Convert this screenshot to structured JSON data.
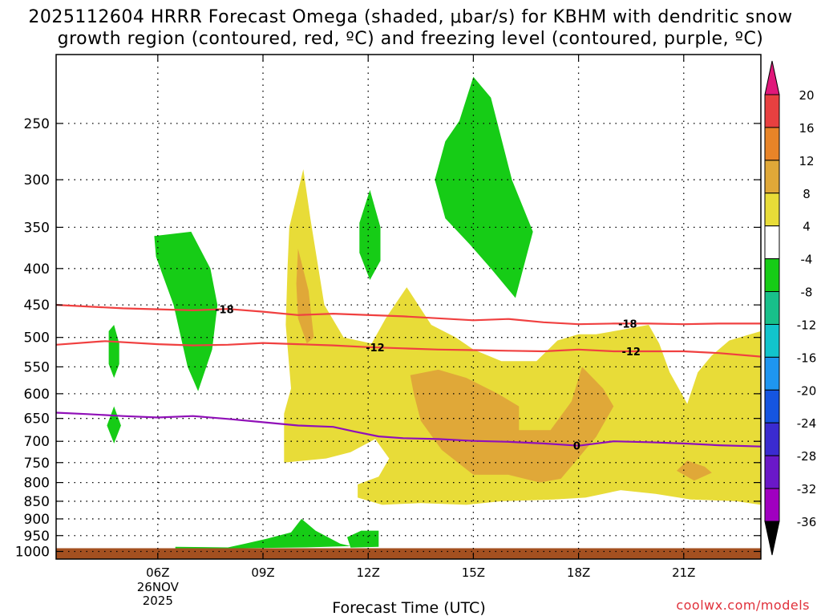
{
  "title": {
    "line1": "2025112604 HRRR Forecast Omega (shaded, μbar/s) for KBHM with dendritic snow",
    "line2": "growth region (contoured, red, ºC) and freezing level (contoured, purple, ºC)"
  },
  "credit": "coolwx.com/models",
  "chart_data": {
    "type": "contour",
    "xlabel": "Forecast Time (UTC)",
    "x_axis": {
      "unit": "hours after 00Z 26NOV2025",
      "range": [
        3.1,
        23.2
      ],
      "ticks": [
        {
          "value": 6,
          "label": "06Z",
          "sub": [
            "26NOV",
            "2025"
          ]
        },
        {
          "value": 9,
          "label": "09Z",
          "sub": []
        },
        {
          "value": 12,
          "label": "12Z",
          "sub": []
        },
        {
          "value": 15,
          "label": "15Z",
          "sub": []
        },
        {
          "value": 18,
          "label": "18Z",
          "sub": []
        },
        {
          "value": 21,
          "label": "21Z",
          "sub": []
        }
      ]
    },
    "y_axis": {
      "unit": "hPa",
      "scale": "log",
      "reversed": true,
      "range": [
        1025,
        200
      ],
      "ticks": [
        250,
        300,
        350,
        400,
        450,
        500,
        550,
        600,
        650,
        700,
        750,
        800,
        850,
        900,
        950,
        1000
      ]
    },
    "grid": "dotted",
    "colorbar": {
      "labels": [
        "20",
        "16",
        "12",
        "8",
        "4",
        "-4",
        "-8",
        "-12",
        "-16",
        "-20",
        "-24",
        "-28",
        "-32",
        "-36"
      ],
      "colors": [
        "#e8e8e8",
        "#a8a8a8",
        "#a000c0",
        "#6a18c8",
        "#3a2bd0",
        "#1555e0",
        "#1e96f0",
        "#12c4cc",
        "#18c08a",
        "#16cc16",
        "#ffffff",
        "#e8dc38",
        "#e0a838",
        "#e88428",
        "#e84040"
      ],
      "extend_top_color": "#e0187a",
      "extend_bottom_color": "#000000"
    },
    "omega_regions": [
      {
        "level": "upward -4 to -8",
        "color": "#16cc16",
        "points": [
          [
            4.75,
            480
          ],
          [
            4.9,
            510
          ],
          [
            4.9,
            545
          ],
          [
            4.75,
            570
          ],
          [
            4.6,
            545
          ],
          [
            4.6,
            490
          ]
        ]
      },
      {
        "level": "upward -4 to -8",
        "color": "#16cc16",
        "points": [
          [
            4.75,
            625
          ],
          [
            4.95,
            665
          ],
          [
            4.75,
            705
          ],
          [
            4.55,
            665
          ]
        ]
      },
      {
        "level": "upward -4 to -8",
        "color": "#16cc16",
        "points": [
          [
            5.9,
            360
          ],
          [
            6.95,
            355
          ],
          [
            7.5,
            400
          ],
          [
            7.7,
            450
          ],
          [
            7.55,
            520
          ],
          [
            7.15,
            595
          ],
          [
            6.85,
            550
          ],
          [
            6.45,
            450
          ],
          [
            5.95,
            385
          ]
        ]
      },
      {
        "level": "upward -4 to -8",
        "color": "#16cc16",
        "points": [
          [
            12.05,
            310
          ],
          [
            12.35,
            350
          ],
          [
            12.35,
            390
          ],
          [
            12.05,
            415
          ],
          [
            11.75,
            380
          ],
          [
            11.75,
            345
          ]
        ]
      },
      {
        "level": "upward -4 to -8",
        "color": "#16cc16",
        "points": [
          [
            15,
            215
          ],
          [
            15.5,
            230
          ],
          [
            16.1,
            300
          ],
          [
            16.7,
            355
          ],
          [
            16.2,
            440
          ],
          [
            15.5,
            400
          ],
          [
            14.9,
            370
          ],
          [
            14.2,
            340
          ],
          [
            13.9,
            300
          ],
          [
            14.2,
            265
          ],
          [
            14.6,
            248
          ]
        ]
      },
      {
        "level": "upward -4 to -8",
        "color": "#16cc16",
        "points": [
          [
            6.5,
            985
          ],
          [
            8.0,
            987
          ],
          [
            8.5,
            975
          ],
          [
            9.1,
            960
          ],
          [
            9.8,
            940
          ],
          [
            10.1,
            900
          ],
          [
            10.5,
            935
          ],
          [
            11.2,
            975
          ],
          [
            11.5,
            983
          ],
          [
            10.2,
            987
          ],
          [
            8.2,
            990
          ],
          [
            6.5,
            990
          ]
        ]
      },
      {
        "level": "upward -4 to -8",
        "color": "#16cc16",
        "points": [
          [
            11.4,
            955
          ],
          [
            11.8,
            935
          ],
          [
            12.3,
            935
          ],
          [
            12.3,
            985
          ],
          [
            11.5,
            988
          ]
        ]
      },
      {
        "level": "downward 4 to 8",
        "color": "#e8dc38",
        "points": [
          [
            9.6,
            750
          ],
          [
            9.6,
            640
          ],
          [
            9.8,
            590
          ],
          [
            9.65,
            480
          ],
          [
            9.7,
            400
          ],
          [
            9.75,
            350
          ],
          [
            10.15,
            290
          ],
          [
            10.35,
            340
          ],
          [
            10.75,
            450
          ],
          [
            11.3,
            500
          ],
          [
            12.1,
            510
          ],
          [
            12.5,
            470
          ],
          [
            13.1,
            425
          ],
          [
            13.8,
            480
          ],
          [
            14.5,
            500
          ],
          [
            15.0,
            520
          ],
          [
            15.8,
            540
          ],
          [
            16.8,
            540
          ],
          [
            17.4,
            505
          ],
          [
            18.0,
            495
          ],
          [
            18.5,
            495
          ],
          [
            19.5,
            485
          ],
          [
            20.0,
            480
          ],
          [
            20.3,
            510
          ],
          [
            20.6,
            560
          ],
          [
            21.1,
            620
          ],
          [
            21.4,
            560
          ],
          [
            21.8,
            530
          ],
          [
            22.3,
            505
          ],
          [
            23.2,
            490
          ],
          [
            23.2,
            860
          ],
          [
            22.5,
            850
          ],
          [
            21.2,
            845
          ],
          [
            20.2,
            830
          ],
          [
            19.2,
            820
          ],
          [
            18.2,
            840
          ],
          [
            17.3,
            845
          ],
          [
            15.8,
            850
          ],
          [
            14.8,
            860
          ],
          [
            13.5,
            855
          ],
          [
            12.4,
            860
          ],
          [
            11.7,
            840
          ],
          [
            11.7,
            805
          ],
          [
            12.3,
            785
          ],
          [
            12.6,
            740
          ],
          [
            12.2,
            695
          ],
          [
            11.5,
            725
          ],
          [
            10.8,
            740
          ]
        ]
      },
      {
        "level": "downward 8 to 12",
        "color": "#e0a838",
        "points": [
          [
            10.0,
            375
          ],
          [
            10.3,
            430
          ],
          [
            10.45,
            500
          ],
          [
            10.25,
            510
          ],
          [
            10.0,
            470
          ],
          [
            9.95,
            420
          ]
        ]
      },
      {
        "level": "downward 8 to 12",
        "color": "#e0a838",
        "points": [
          [
            13.2,
            565
          ],
          [
            14.0,
            555
          ],
          [
            14.8,
            570
          ],
          [
            15.7,
            600
          ],
          [
            16.3,
            625
          ],
          [
            16.3,
            675
          ],
          [
            17.2,
            675
          ],
          [
            17.8,
            615
          ],
          [
            18.1,
            550
          ],
          [
            18.7,
            590
          ],
          [
            19.0,
            625
          ],
          [
            18.5,
            690
          ],
          [
            17.5,
            790
          ],
          [
            16.9,
            800
          ],
          [
            16.0,
            780
          ],
          [
            15.0,
            780
          ],
          [
            14.1,
            720
          ],
          [
            13.5,
            655
          ],
          [
            13.3,
            600
          ]
        ]
      },
      {
        "level": "downward 8 to 12",
        "color": "#e0a838",
        "points": [
          [
            21.1,
            745
          ],
          [
            21.6,
            760
          ],
          [
            21.8,
            775
          ],
          [
            21.3,
            795
          ],
          [
            20.8,
            770
          ]
        ]
      }
    ],
    "contours": [
      {
        "name": "-18",
        "color": "#f04040",
        "label": "-18",
        "label_positions": [
          7.9,
          19.4
        ],
        "points": [
          [
            3.1,
            450
          ],
          [
            5,
            455
          ],
          [
            7,
            458
          ],
          [
            8,
            456
          ],
          [
            9,
            460
          ],
          [
            10,
            465
          ],
          [
            11,
            463
          ],
          [
            13,
            467
          ],
          [
            15,
            473
          ],
          [
            16,
            471
          ],
          [
            17,
            476
          ],
          [
            18,
            479
          ],
          [
            19,
            478
          ],
          [
            20,
            478
          ],
          [
            21,
            479
          ],
          [
            22,
            478
          ],
          [
            23.2,
            478
          ]
        ]
      },
      {
        "name": "-12",
        "color": "#f04040",
        "label": "-12",
        "label_positions": [
          12.2,
          19.5
        ],
        "points": [
          [
            3.1,
            512
          ],
          [
            4.5,
            506
          ],
          [
            6,
            511
          ],
          [
            7,
            513
          ],
          [
            8,
            512
          ],
          [
            9,
            509
          ],
          [
            10,
            511
          ],
          [
            11,
            513
          ],
          [
            12,
            516
          ],
          [
            13,
            518
          ],
          [
            14,
            520
          ],
          [
            15,
            521
          ],
          [
            16,
            522
          ],
          [
            17,
            523
          ],
          [
            18,
            520
          ],
          [
            19,
            523
          ],
          [
            20,
            523
          ],
          [
            21,
            523
          ],
          [
            22,
            526
          ],
          [
            23.2,
            532
          ]
        ]
      },
      {
        "name": "0",
        "color": "#9010b8",
        "label": "0",
        "label_positions": [
          17.95
        ],
        "points": [
          [
            3.1,
            638
          ],
          [
            4,
            641
          ],
          [
            5,
            645
          ],
          [
            6,
            648
          ],
          [
            7,
            645
          ],
          [
            8,
            651
          ],
          [
            9,
            658
          ],
          [
            10,
            665
          ],
          [
            11,
            668
          ],
          [
            11.6,
            678
          ],
          [
            12.3,
            689
          ],
          [
            13,
            693
          ],
          [
            14,
            695
          ],
          [
            15,
            699
          ],
          [
            16,
            701
          ],
          [
            17,
            705
          ],
          [
            18,
            710
          ],
          [
            19,
            700
          ],
          [
            20,
            702
          ],
          [
            21,
            705
          ],
          [
            22,
            709
          ],
          [
            23.2,
            712
          ]
        ]
      }
    ],
    "terrain": {
      "top_pressure": 1000,
      "color": "#a45020"
    }
  }
}
